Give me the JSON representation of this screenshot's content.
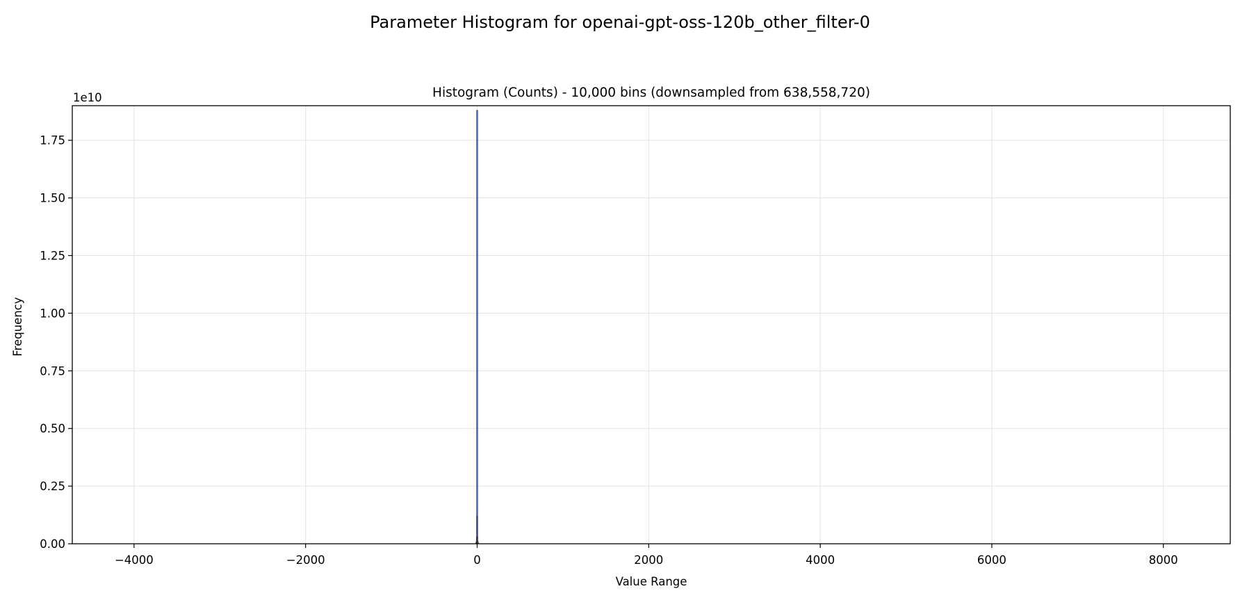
{
  "chart_data": {
    "type": "bar",
    "title": "Parameter Histogram for openai-gpt-oss-120b_other_filter-0",
    "subtitle": "Histogram (Counts) - 10,000 bins (downsampled from 638,558,720)",
    "xlabel": "Value Range",
    "ylabel": "Frequency",
    "y_offset_label": "1e10",
    "y_scale": 10000000000,
    "xlim": [
      -4720,
      8780
    ],
    "ylim": [
      0,
      1.9
    ],
    "grid": true,
    "x_ticks": [
      -4000,
      -2000,
      0,
      2000,
      4000,
      6000,
      8000
    ],
    "x_tick_labels": [
      "−4000",
      "−2000",
      "0",
      "2000",
      "4000",
      "6000",
      "8000"
    ],
    "y_ticks": [
      0,
      0.25,
      0.5,
      0.75,
      1.0,
      1.25,
      1.5,
      1.75
    ],
    "y_tick_labels": [
      "0.00",
      "0.25",
      "0.50",
      "0.75",
      "1.00",
      "1.25",
      "1.50",
      "1.75"
    ],
    "bar_color": "#5b6ec2",
    "bar_edge_color": "#2b2b2b",
    "bins_x": [
      -12,
      -8,
      -4,
      -2,
      0,
      2,
      4,
      8,
      12
    ],
    "values": [
      0.004,
      0.01,
      0.03,
      0.12,
      1.88,
      0.12,
      0.03,
      0.01,
      0.004
    ]
  }
}
